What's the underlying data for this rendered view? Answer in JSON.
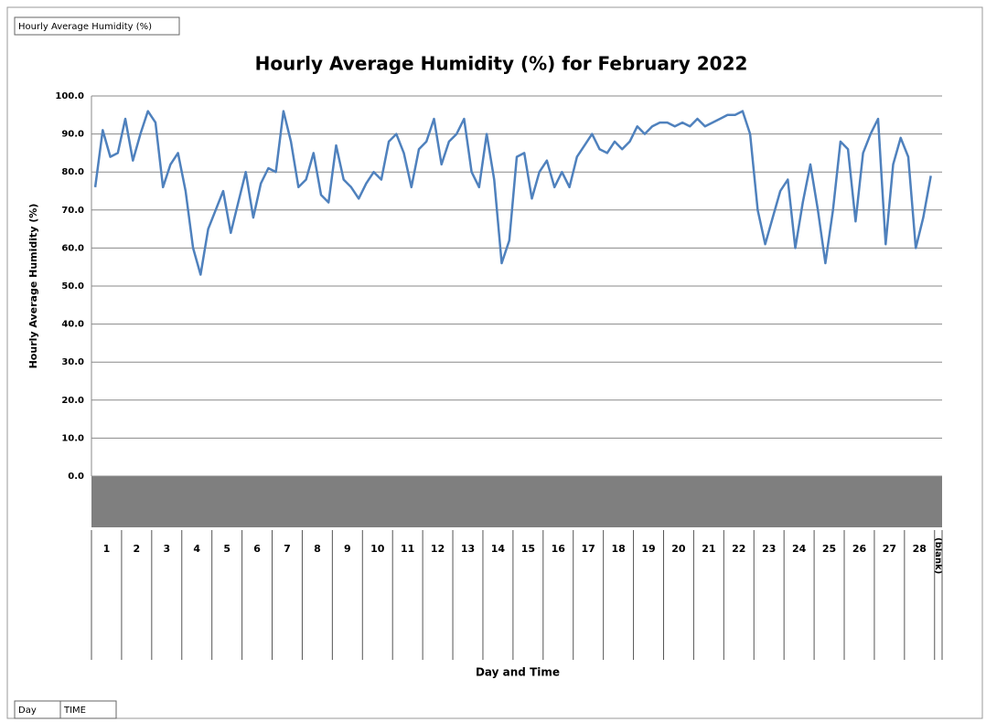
{
  "buttons": {
    "field": "Hourly Average Humidity (%)",
    "row1": "Day",
    "row2": "TIME"
  },
  "chart_data": {
    "type": "line",
    "title": "Hourly Average Humidity (%) for February 2022",
    "y_label": "Hourly Average Humidity (%)",
    "x_label": "Day and Time",
    "categories": [
      "1",
      "1",
      "1",
      "1",
      "2",
      "2",
      "2",
      "2",
      "3",
      "3",
      "3",
      "3",
      "4",
      "4",
      "4",
      "4",
      "5",
      "5",
      "5",
      "5",
      "6",
      "6",
      "6",
      "6",
      "7",
      "7",
      "7",
      "7",
      "8",
      "8",
      "8",
      "8",
      "9",
      "9",
      "9",
      "9",
      "10",
      "10",
      "10",
      "10",
      "11",
      "11",
      "11",
      "11",
      "12",
      "12",
      "12",
      "12",
      "13",
      "13",
      "13",
      "13",
      "14",
      "14",
      "14",
      "14",
      "15",
      "15",
      "15",
      "15",
      "16",
      "16",
      "16",
      "16",
      "17",
      "17",
      "17",
      "17",
      "18",
      "18",
      "18",
      "18",
      "19",
      "19",
      "19",
      "19",
      "20",
      "20",
      "20",
      "20",
      "21",
      "21",
      "21",
      "21",
      "22",
      "22",
      "22",
      "22",
      "23",
      "23",
      "23",
      "23",
      "24",
      "24",
      "24",
      "24",
      "25",
      "25",
      "25",
      "25",
      "26",
      "26",
      "26",
      "26",
      "27",
      "27",
      "27",
      "27",
      "28",
      "28",
      "28",
      "28",
      "(blank)"
    ],
    "series": [
      {
        "name": "Hourly Average Humidity (%)",
        "color": "#4f81bd",
        "values": [
          76,
          91,
          84,
          85,
          94,
          83,
          90,
          96,
          93,
          76,
          82,
          85,
          75,
          60,
          53,
          65,
          70,
          75,
          64,
          72,
          80,
          68,
          77,
          81,
          80,
          96,
          88,
          76,
          78,
          85,
          74,
          72,
          87,
          78,
          76,
          73,
          77,
          80,
          78,
          88,
          90,
          85,
          76,
          86,
          88,
          94,
          82,
          88,
          90,
          94,
          80,
          76,
          90,
          78,
          56,
          62,
          84,
          85,
          73,
          80,
          83,
          76,
          80,
          76,
          84,
          87,
          90,
          86,
          85,
          88,
          86,
          88,
          92,
          90,
          92,
          93,
          93,
          92,
          93,
          92,
          94,
          92,
          93,
          94,
          95,
          95,
          96,
          90,
          70,
          61,
          68,
          75,
          78,
          60,
          72,
          82,
          70,
          56,
          70,
          88,
          86,
          67,
          85,
          90,
          94,
          61,
          82,
          89,
          84,
          60,
          68,
          79,
          null
        ]
      }
    ],
    "ylim": [
      0,
      100
    ],
    "yticks": [
      {
        "value": 0,
        "label": "0.0"
      },
      {
        "value": 10,
        "label": "10.0"
      },
      {
        "value": 20,
        "label": "20.0"
      },
      {
        "value": 30,
        "label": "30.0"
      },
      {
        "value": 40,
        "label": "40.0"
      },
      {
        "value": 50,
        "label": "50.0"
      },
      {
        "value": 60,
        "label": "60.0"
      },
      {
        "value": 70,
        "label": "70.0"
      },
      {
        "value": 80,
        "label": "80.0"
      },
      {
        "value": 90,
        "label": "90.0"
      },
      {
        "value": 100,
        "label": "100.0"
      }
    ],
    "grid": true
  }
}
